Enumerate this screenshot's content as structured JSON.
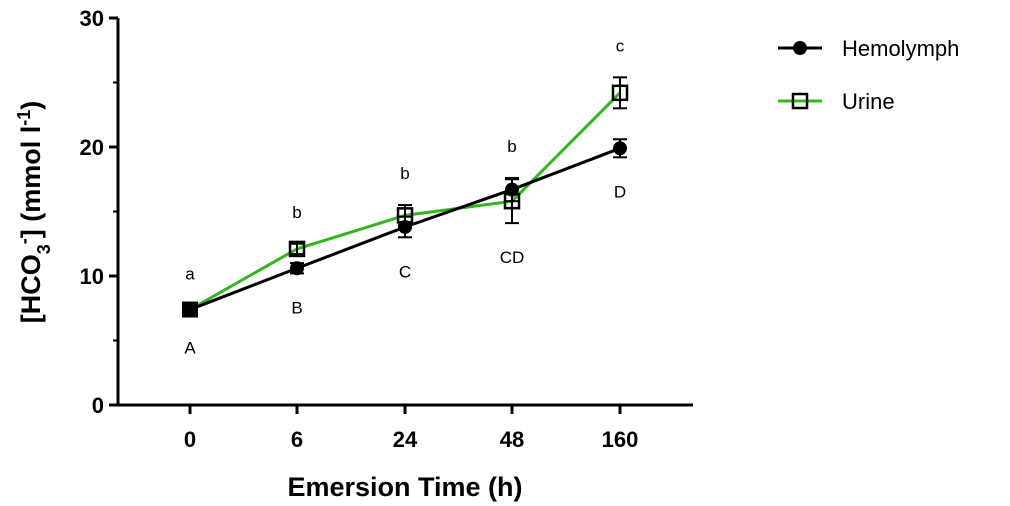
{
  "chart_data": {
    "type": "line",
    "categories": [
      "0",
      "6",
      "24",
      "48",
      "160"
    ],
    "xlabel": "Emersion Time (h)",
    "ylabel": {
      "open": "[HCO",
      "sub": "3",
      "sup_charge": "-",
      "mid": "] (mmol l",
      "sup_unit": "-1",
      "close": ")"
    },
    "ylim": [
      0,
      30
    ],
    "yticks": [
      "0",
      "10",
      "20",
      "30"
    ],
    "legend_position": "top-right, outside plot",
    "series": [
      {
        "name": "Hemolymph",
        "color": "#000000",
        "marker": "filled-circle",
        "values": [
          7.4,
          10.6,
          13.8,
          16.7,
          19.9
        ],
        "errors": [
          0.3,
          0.4,
          0.8,
          0.9,
          0.7
        ],
        "letters": [
          "A",
          "B",
          "C",
          "CD",
          "D"
        ]
      },
      {
        "name": "Urine",
        "color": "#33b51f",
        "marker": "open-square",
        "values": [
          7.4,
          12.1,
          14.7,
          15.8,
          24.2
        ],
        "errors": [
          0.3,
          0.4,
          0.8,
          1.7,
          1.2
        ],
        "letters": [
          "a",
          "b",
          "b",
          "b",
          "c"
        ]
      }
    ]
  }
}
